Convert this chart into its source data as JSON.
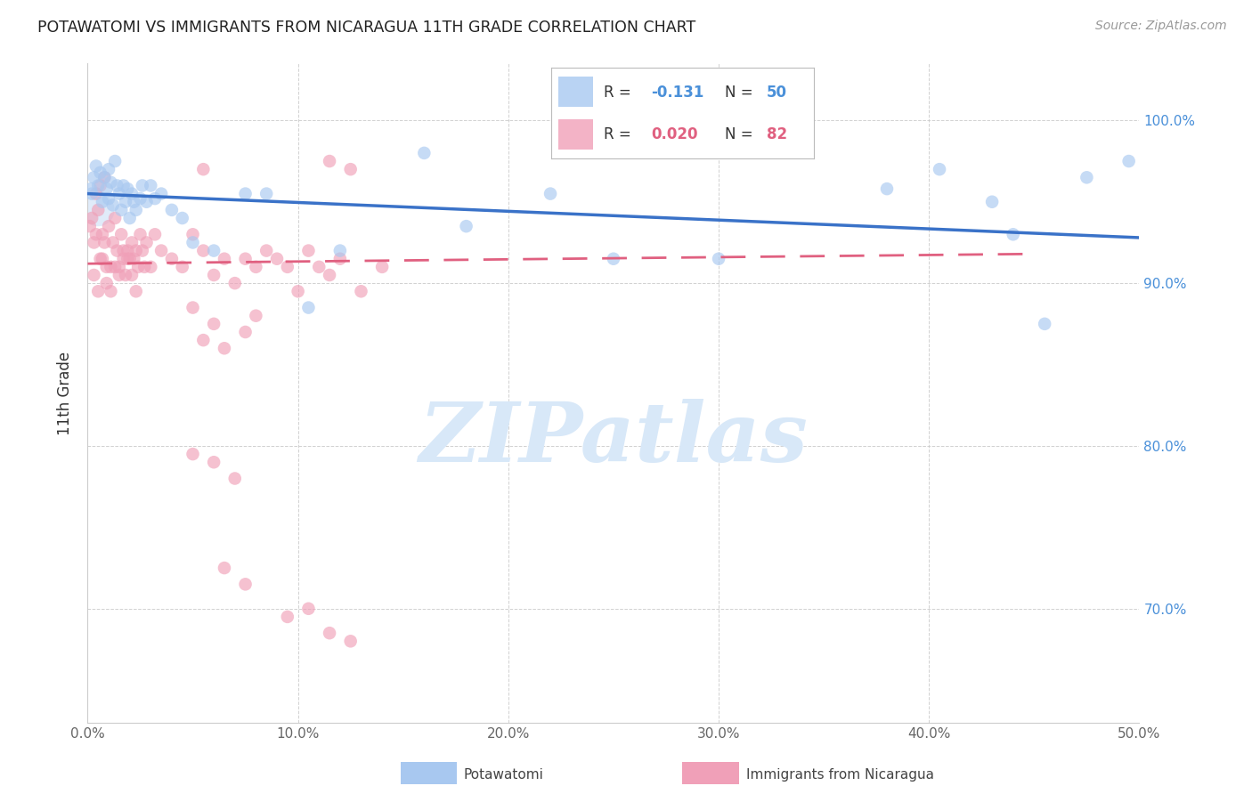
{
  "title": "POTAWATOMI VS IMMIGRANTS FROM NICARAGUA 11TH GRADE CORRELATION CHART",
  "source": "Source: ZipAtlas.com",
  "ylabel": "11th Grade",
  "legend_label1": "Potawatomi",
  "legend_label2": "Immigrants from Nicaragua",
  "R1": -0.131,
  "N1": 50,
  "R2": 0.02,
  "N2": 82,
  "xlim": [
    0.0,
    50.0
  ],
  "ylim": [
    63.0,
    103.5
  ],
  "xticks": [
    0.0,
    10.0,
    20.0,
    30.0,
    40.0,
    50.0
  ],
  "yticks": [
    70.0,
    80.0,
    90.0,
    100.0
  ],
  "ytick_labels_right": [
    "70.0%",
    "80.0%",
    "90.0%",
    "100.0%"
  ],
  "xtick_labels": [
    "0.0%",
    "10.0%",
    "20.0%",
    "30.0%",
    "40.0%",
    "50.0%"
  ],
  "color_blue": "#A8C8F0",
  "color_pink": "#F0A0B8",
  "color_blue_line": "#3A72C8",
  "color_pink_line": "#E06080",
  "watermark": "ZIPatlas",
  "watermark_color": "#D8E8F8",
  "blue_line_x0": 0.0,
  "blue_line_y0": 95.5,
  "blue_line_x1": 50.0,
  "blue_line_y1": 92.8,
  "pink_line_x0": 0.0,
  "pink_line_y0": 91.2,
  "pink_line_x1": 45.0,
  "pink_line_y1": 91.8,
  "blue_scatter_x": [
    0.2,
    0.3,
    0.4,
    0.5,
    0.6,
    0.7,
    0.8,
    0.9,
    1.0,
    1.0,
    1.1,
    1.2,
    1.3,
    1.4,
    1.5,
    1.6,
    1.7,
    1.8,
    1.9,
    2.0,
    2.1,
    2.2,
    2.5,
    3.0,
    3.5,
    4.0,
    5.0,
    6.0,
    7.5,
    8.5,
    10.5,
    12.0,
    16.0,
    18.0,
    22.0,
    25.0,
    30.0,
    38.0,
    40.5,
    43.0,
    44.0,
    45.5,
    47.5,
    49.5,
    2.3,
    2.6,
    2.8,
    3.2,
    4.5,
    0.15
  ],
  "blue_scatter_y": [
    95.5,
    96.5,
    97.2,
    96.0,
    96.8,
    95.0,
    96.5,
    95.8,
    97.0,
    95.2,
    96.2,
    94.8,
    97.5,
    96.0,
    95.5,
    94.5,
    96.0,
    95.0,
    95.8,
    94.0,
    95.5,
    95.0,
    95.2,
    96.0,
    95.5,
    94.5,
    92.5,
    92.0,
    95.5,
    95.5,
    88.5,
    92.0,
    98.0,
    93.5,
    95.5,
    91.5,
    91.5,
    95.8,
    97.0,
    95.0,
    93.0,
    87.5,
    96.5,
    97.5,
    94.5,
    96.0,
    95.0,
    95.2,
    94.0,
    95.8
  ],
  "blue_large_x": [
    0.5
  ],
  "blue_large_y": [
    94.5
  ],
  "pink_scatter_x": [
    0.1,
    0.2,
    0.3,
    0.4,
    0.5,
    0.6,
    0.7,
    0.8,
    0.9,
    1.0,
    1.1,
    1.2,
    1.3,
    1.4,
    1.5,
    1.6,
    1.7,
    1.8,
    1.9,
    2.0,
    2.1,
    2.2,
    2.3,
    2.4,
    2.5,
    2.6,
    2.7,
    2.8,
    3.0,
    3.2,
    3.5,
    4.0,
    4.5,
    5.0,
    5.5,
    6.0,
    6.5,
    7.0,
    7.5,
    8.0,
    8.5,
    9.0,
    9.5,
    10.0,
    10.5,
    11.0,
    11.5,
    12.0,
    13.0,
    14.0,
    0.3,
    0.5,
    0.7,
    0.9,
    1.1,
    1.3,
    1.5,
    1.7,
    1.9,
    2.1,
    2.3,
    5.5,
    6.5,
    7.5,
    5.0,
    6.0,
    8.0,
    5.0,
    6.0,
    7.0,
    6.5,
    7.5,
    9.5,
    10.5,
    11.5,
    12.5,
    0.4,
    0.6,
    0.8,
    5.5,
    11.5,
    12.5
  ],
  "pink_scatter_y": [
    93.5,
    94.0,
    92.5,
    93.0,
    94.5,
    91.5,
    93.0,
    92.5,
    91.0,
    93.5,
    91.0,
    92.5,
    94.0,
    92.0,
    91.0,
    93.0,
    91.5,
    90.5,
    92.0,
    91.5,
    92.5,
    91.5,
    92.0,
    91.0,
    93.0,
    92.0,
    91.0,
    92.5,
    91.0,
    93.0,
    92.0,
    91.5,
    91.0,
    93.0,
    92.0,
    90.5,
    91.5,
    90.0,
    91.5,
    91.0,
    92.0,
    91.5,
    91.0,
    89.5,
    92.0,
    91.0,
    90.5,
    91.5,
    89.5,
    91.0,
    90.5,
    89.5,
    91.5,
    90.0,
    89.5,
    91.0,
    90.5,
    92.0,
    91.5,
    90.5,
    89.5,
    86.5,
    86.0,
    87.0,
    88.5,
    87.5,
    88.0,
    79.5,
    79.0,
    78.0,
    72.5,
    71.5,
    69.5,
    70.0,
    68.5,
    68.0,
    95.5,
    96.0,
    96.5,
    97.0,
    97.5,
    97.0
  ]
}
